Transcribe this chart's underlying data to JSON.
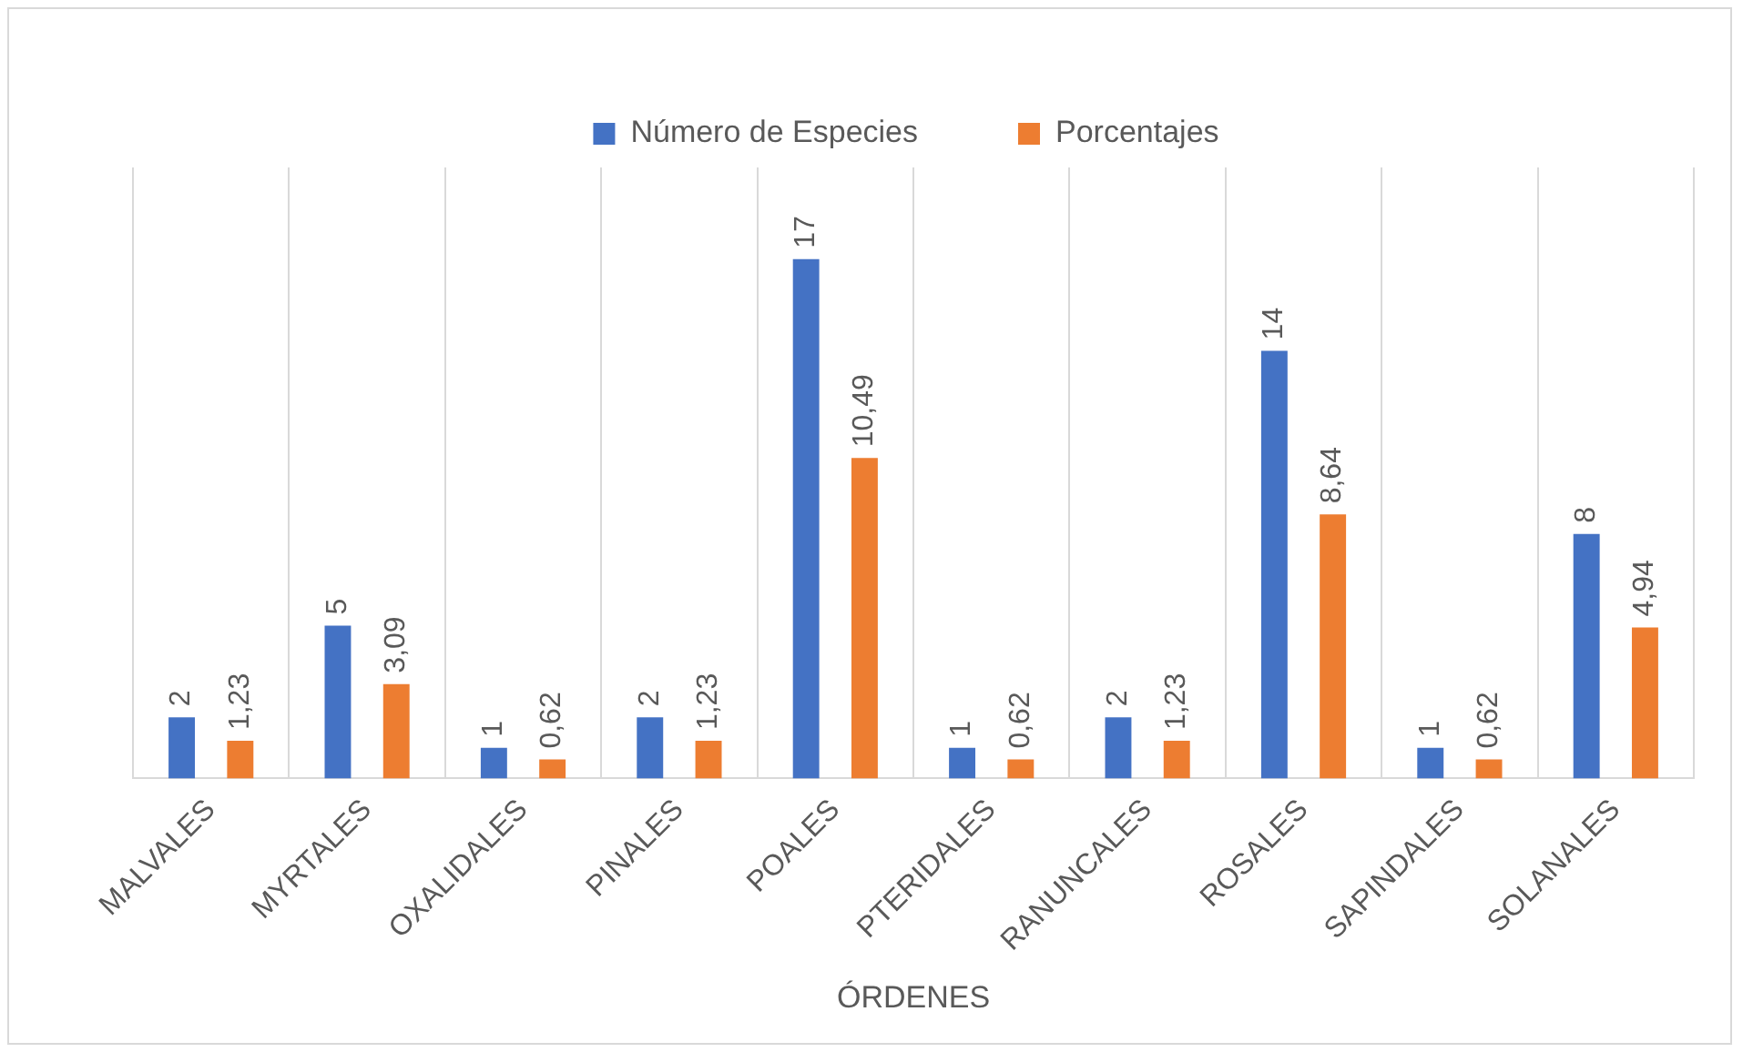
{
  "chart_data": {
    "type": "bar",
    "xlabel": "ÓRDENES",
    "categories": [
      "MALVALES",
      "MYRTALES",
      "OXALIDALES",
      "PINALES",
      "POALES",
      "PTERIDALES",
      "RANUNCALES",
      "ROSALES",
      "SAPINDALES",
      "SOLANALES"
    ],
    "series": [
      {
        "name": "Número de Especies",
        "color": "#4472c4",
        "values": [
          2,
          5,
          1,
          2,
          17,
          1,
          2,
          14,
          1,
          8
        ],
        "value_labels": [
          "2",
          "5",
          "1",
          "2",
          "17",
          "1",
          "2",
          "14",
          "1",
          "8"
        ]
      },
      {
        "name": "Porcentajes",
        "color": "#ed7d31",
        "values": [
          1.23,
          3.09,
          0.62,
          1.23,
          10.49,
          0.62,
          1.23,
          8.64,
          0.62,
          4.94
        ],
        "value_labels": [
          "1,23",
          "3,09",
          "0,62",
          "1,23",
          "10,49",
          "0,62",
          "1,23",
          "8,64",
          "0,62",
          "4,94"
        ]
      }
    ],
    "grid": "x",
    "legend": "top",
    "tick_labels": "x"
  }
}
